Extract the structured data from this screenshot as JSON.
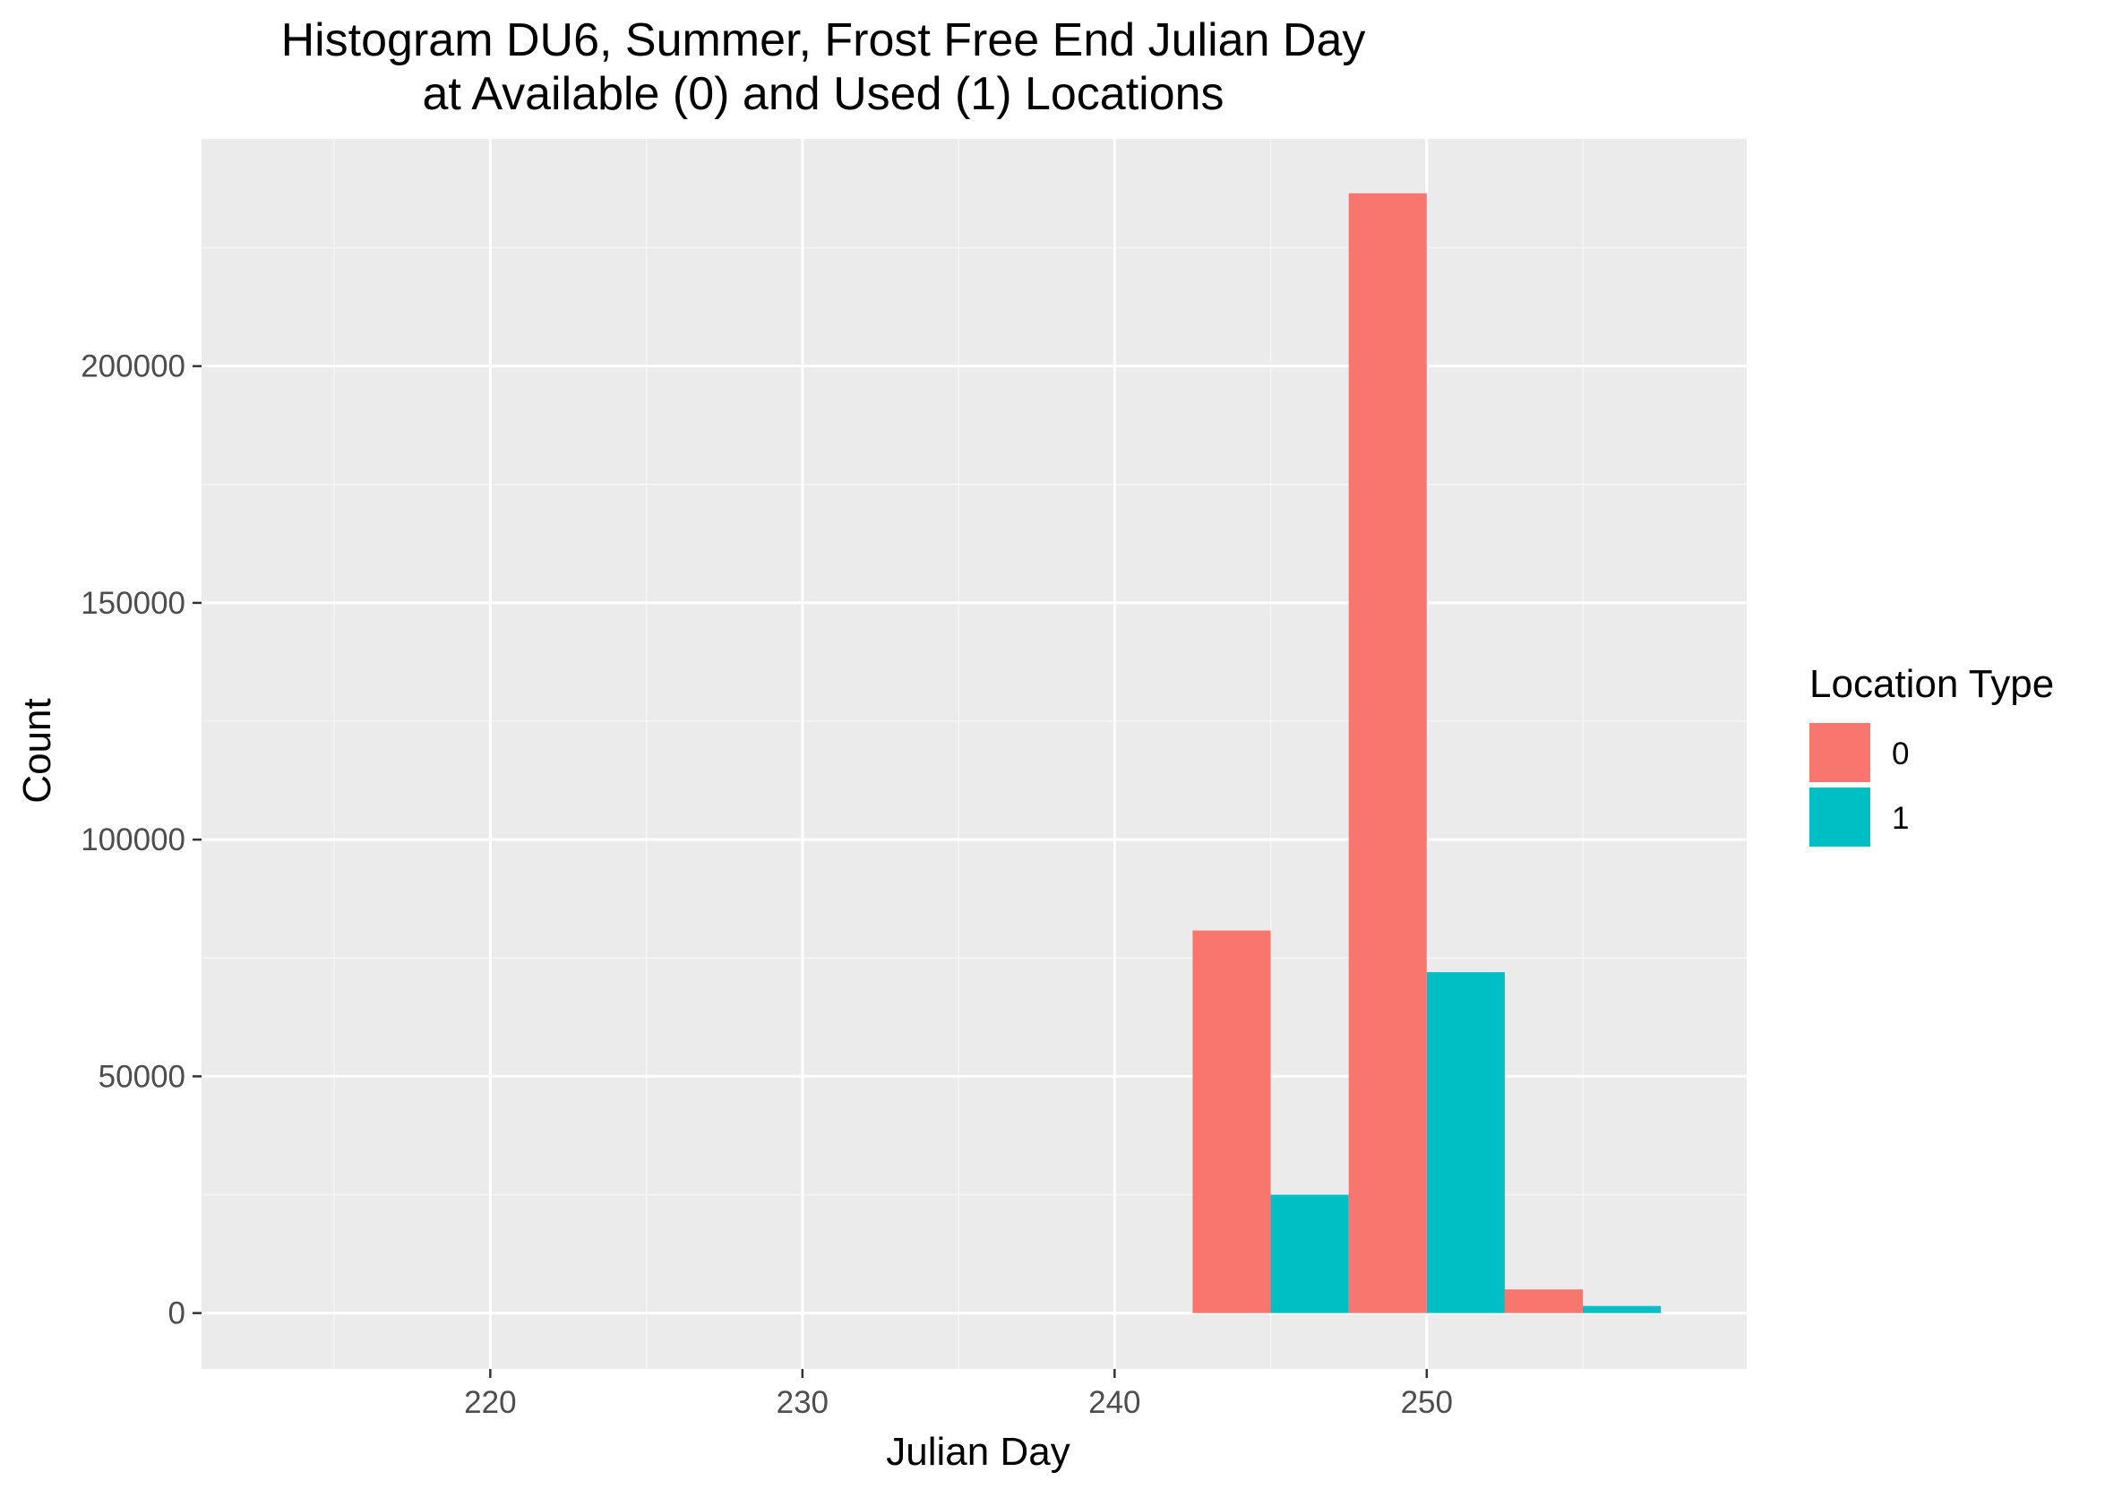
{
  "chart_data": {
    "type": "bar",
    "title_lines": [
      "Histogram DU6, Summer, Frost Free End Julian Day",
      "at Available (0) and Used (1) Locations"
    ],
    "xlabel": "Julian Day",
    "ylabel": "Count",
    "xlim": [
      210.75,
      260.25
    ],
    "ylim": [
      -11800,
      248000
    ],
    "x_ticks": [
      220,
      230,
      240,
      250
    ],
    "y_ticks": [
      0,
      50000,
      100000,
      150000,
      200000
    ],
    "grid": true,
    "legend": {
      "title": "Location Type",
      "position": "right",
      "entries": [
        {
          "label": "0",
          "color": "#F8766D"
        },
        {
          "label": "1",
          "color": "#00BFC4"
        }
      ]
    },
    "bin_width": 5,
    "series": [
      {
        "name": "0",
        "color": "#F8766D",
        "bins": [
          {
            "x": 245,
            "count": 80800
          },
          {
            "x": 250,
            "count": 236500
          },
          {
            "x": 255,
            "count": 5000
          }
        ]
      },
      {
        "name": "1",
        "color": "#00BFC4",
        "bins": [
          {
            "x": 245,
            "count": 25000
          },
          {
            "x": 250,
            "count": 72000
          },
          {
            "x": 255,
            "count": 1500
          }
        ]
      }
    ],
    "colors": {
      "panel_background": "#EBEBEB",
      "grid_major": "#FFFFFF",
      "grid_minor": "#F5F5F5",
      "tick_text": "#4D4D4D"
    }
  }
}
